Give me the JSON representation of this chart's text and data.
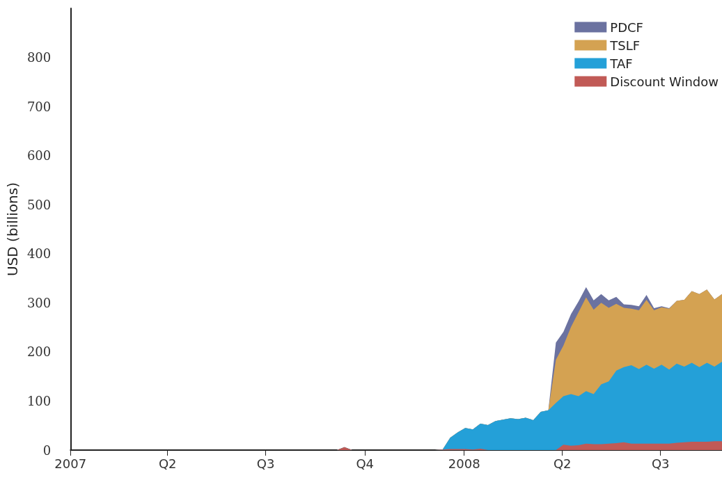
{
  "chart_data": {
    "type": "area",
    "stacked": true,
    "ylabel": "USD (billions)",
    "x": [
      "2007-01-03",
      "2007-09-05",
      "2007-09-12",
      "2007-09-19",
      "2007-12-05",
      "2007-12-12",
      "2007-12-19",
      "2007-12-26",
      "2008-01-02",
      "2008-01-09",
      "2008-01-16",
      "2008-01-23",
      "2008-01-30",
      "2008-02-06",
      "2008-02-13",
      "2008-02-20",
      "2008-02-27",
      "2008-03-05",
      "2008-03-12",
      "2008-03-19",
      "2008-03-26",
      "2008-04-02",
      "2008-04-09",
      "2008-04-16",
      "2008-04-23",
      "2008-04-30",
      "2008-05-07",
      "2008-05-14",
      "2008-05-21",
      "2008-05-28",
      "2008-06-04",
      "2008-06-11",
      "2008-06-18",
      "2008-06-25",
      "2008-07-02",
      "2008-07-09",
      "2008-07-16",
      "2008-07-23",
      "2008-07-30",
      "2008-08-06",
      "2008-08-13",
      "2008-08-20",
      "2008-08-27"
    ],
    "series": [
      {
        "name": "Discount Window",
        "color": "#c15a56",
        "values": [
          0,
          0,
          6,
          0,
          0,
          1,
          2,
          2,
          2,
          1,
          3,
          0,
          0,
          0,
          0,
          0,
          0,
          0,
          0,
          0,
          0,
          11,
          9,
          10,
          13,
          12,
          12,
          13,
          14,
          16,
          13,
          13,
          13,
          13,
          13,
          13,
          15,
          16,
          17,
          17,
          17,
          18,
          18
        ]
      },
      {
        "name": "TAF",
        "color": "#24a0d8",
        "values": [
          0,
          0,
          0,
          0,
          0,
          0,
          23,
          34,
          43,
          41,
          51,
          51,
          59,
          62,
          65,
          63,
          66,
          61,
          78,
          81,
          96,
          99,
          105,
          100,
          107,
          102,
          122,
          127,
          148,
          153,
          160,
          152,
          161,
          153,
          161,
          151,
          161,
          154,
          161,
          152,
          161,
          152,
          162
        ]
      },
      {
        "name": "TSLF",
        "color": "#d4a252",
        "values": [
          0,
          0,
          0,
          0,
          0,
          0,
          0,
          0,
          0,
          0,
          0,
          0,
          0,
          0,
          0,
          0,
          0,
          0,
          0,
          0,
          88,
          103,
          137,
          171,
          191,
          172,
          166,
          150,
          136,
          121,
          115,
          120,
          132,
          119,
          117,
          124,
          128,
          136,
          146,
          149,
          149,
          137,
          138
        ]
      },
      {
        "name": "PDCF",
        "color": "#6b72a0",
        "values": [
          0,
          0,
          0,
          0,
          0,
          0,
          0,
          0,
          0,
          0,
          0,
          0,
          0,
          0,
          0,
          0,
          0,
          0,
          0,
          0,
          35,
          28,
          26,
          22,
          21,
          19,
          18,
          15,
          14,
          7,
          8,
          8,
          10,
          4,
          2,
          1,
          0,
          0,
          0,
          0,
          0,
          0,
          0
        ]
      }
    ],
    "xlim": [
      "2007-01-01",
      "2008-08-27"
    ],
    "xticks": [
      {
        "value": "2007-01-01",
        "label": "2007"
      },
      {
        "value": "2007-04-01",
        "label": "Q2"
      },
      {
        "value": "2007-07-01",
        "label": "Q3"
      },
      {
        "value": "2007-10-01",
        "label": "Q4"
      },
      {
        "value": "2008-01-01",
        "label": "2008"
      },
      {
        "value": "2008-04-01",
        "label": "Q2"
      },
      {
        "value": "2008-07-01",
        "label": "Q3"
      }
    ],
    "ylim": [
      0,
      900
    ],
    "yticks": [
      0,
      100,
      200,
      300,
      400,
      500,
      600,
      700,
      800
    ],
    "grid": false,
    "legend": "top right"
  }
}
